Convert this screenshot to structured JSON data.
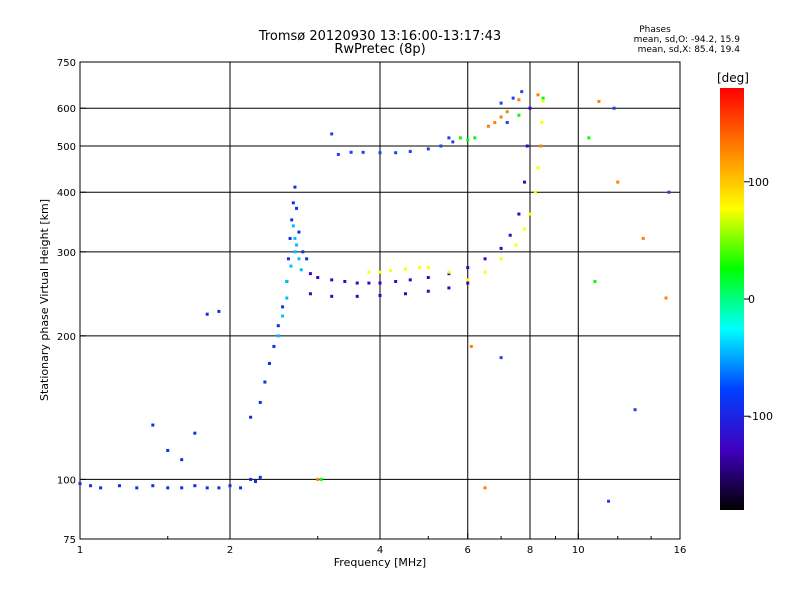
{
  "chart_data": {
    "type": "scatter",
    "title": "Tromsø 20120930 13:16:00-13:17:43",
    "subtitle": "RwPretec (8p)",
    "xlabel": "Frequency [MHz]",
    "ylabel": "Stationary phase Virtual Height [km]",
    "xscale": "log",
    "yscale": "log",
    "xlim": [
      1,
      16
    ],
    "ylim": [
      75,
      750
    ],
    "x_ticks": [
      1,
      2,
      4,
      6,
      8,
      10,
      16
    ],
    "y_ticks": [
      75,
      100,
      200,
      300,
      400,
      500,
      600,
      750
    ],
    "x_gridlines": [
      2,
      4,
      6,
      8,
      10
    ],
    "y_gridlines": [
      100,
      200,
      300,
      400,
      500,
      600
    ],
    "grid": true,
    "info": {
      "heading": "Phases",
      "line1": "mean, sd,O: -94.2, 15.9",
      "line2": "mean, sd,X: 85.4, 19.4"
    },
    "colorbar": {
      "label": "[deg]",
      "range": [
        -180,
        180
      ],
      "ticks": [
        100,
        0,
        -100
      ],
      "colors": [
        "#ff0000",
        "#ff8000",
        "#ffff00",
        "#00ff00",
        "#00ffff",
        "#0040ff",
        "#4000c0",
        "#000000"
      ]
    },
    "series": [
      {
        "color": "#1030e0",
        "phase": -100,
        "points": [
          [
            1.0,
            98
          ],
          [
            1.05,
            97
          ],
          [
            1.1,
            96
          ],
          [
            1.2,
            97
          ],
          [
            1.3,
            96
          ],
          [
            1.4,
            97
          ],
          [
            1.5,
            96
          ],
          [
            1.6,
            96
          ],
          [
            1.7,
            97
          ],
          [
            1.8,
            96
          ],
          [
            1.9,
            96
          ],
          [
            2.0,
            97
          ],
          [
            2.1,
            96
          ],
          [
            2.2,
            100
          ],
          [
            2.25,
            99
          ],
          [
            2.3,
            101
          ],
          [
            1.8,
            222
          ],
          [
            1.9,
            225
          ],
          [
            1.6,
            110
          ],
          [
            1.7,
            125
          ],
          [
            1.5,
            115
          ],
          [
            1.4,
            130
          ],
          [
            2.2,
            135
          ],
          [
            2.3,
            145
          ],
          [
            2.35,
            160
          ],
          [
            2.4,
            175
          ],
          [
            2.45,
            190
          ],
          [
            2.5,
            210
          ],
          [
            2.55,
            230
          ],
          [
            2.6,
            260
          ],
          [
            2.62,
            290
          ],
          [
            2.64,
            320
          ],
          [
            2.66,
            350
          ],
          [
            2.68,
            380
          ],
          [
            2.7,
            410
          ],
          [
            2.72,
            370
          ],
          [
            2.75,
            330
          ],
          [
            2.8,
            300
          ],
          [
            2.85,
            290
          ]
        ]
      },
      {
        "color": "#00c0ff",
        "phase": -40,
        "points": [
          [
            2.6,
            260
          ],
          [
            2.65,
            280
          ],
          [
            2.7,
            300
          ],
          [
            2.72,
            310
          ],
          [
            2.75,
            290
          ],
          [
            2.78,
            275
          ],
          [
            2.6,
            240
          ],
          [
            2.55,
            220
          ],
          [
            2.5,
            200
          ],
          [
            2.7,
            320
          ],
          [
            2.68,
            340
          ]
        ]
      },
      {
        "color": "#4000c0",
        "phase": -130,
        "points": [
          [
            2.9,
            270
          ],
          [
            3.0,
            265
          ],
          [
            3.2,
            262
          ],
          [
            3.4,
            260
          ],
          [
            3.6,
            258
          ],
          [
            3.8,
            258
          ],
          [
            4.0,
            258
          ],
          [
            4.3,
            260
          ],
          [
            4.6,
            262
          ],
          [
            5.0,
            265
          ],
          [
            5.5,
            270
          ],
          [
            6.0,
            278
          ],
          [
            6.5,
            290
          ],
          [
            7.0,
            305
          ],
          [
            7.3,
            325
          ],
          [
            7.6,
            360
          ],
          [
            7.8,
            420
          ],
          [
            7.9,
            500
          ],
          [
            8.0,
            600
          ],
          [
            2.9,
            245
          ],
          [
            3.2,
            242
          ],
          [
            3.6,
            242
          ],
          [
            4.0,
            243
          ],
          [
            4.5,
            245
          ],
          [
            5.0,
            248
          ],
          [
            5.5,
            252
          ],
          [
            6.0,
            258
          ]
        ]
      },
      {
        "color": "#ffff00",
        "phase": 100,
        "points": [
          [
            3.8,
            272
          ],
          [
            4.0,
            272
          ],
          [
            4.2,
            274
          ],
          [
            4.5,
            276
          ],
          [
            4.8,
            278
          ],
          [
            5.0,
            278
          ],
          [
            5.5,
            272
          ],
          [
            6.0,
            262
          ],
          [
            6.5,
            272
          ],
          [
            7.0,
            290
          ],
          [
            7.5,
            310
          ],
          [
            7.8,
            335
          ],
          [
            8.0,
            360
          ],
          [
            8.2,
            400
          ],
          [
            8.3,
            450
          ],
          [
            8.4,
            500
          ],
          [
            8.45,
            560
          ],
          [
            8.5,
            620
          ]
        ]
      },
      {
        "color": "#ff8000",
        "phase": 150,
        "points": [
          [
            6.6,
            550
          ],
          [
            6.8,
            560
          ],
          [
            7.0,
            575
          ],
          [
            7.2,
            590
          ],
          [
            7.6,
            625
          ],
          [
            8.3,
            640
          ],
          [
            8.4,
            500
          ],
          [
            3.0,
            100
          ],
          [
            6.5,
            96
          ],
          [
            6.1,
            190
          ],
          [
            11.0,
            620
          ],
          [
            12.0,
            420
          ],
          [
            13.5,
            320
          ],
          [
            15.0,
            240
          ]
        ]
      },
      {
        "color": "#00ff00",
        "phase": 20,
        "points": [
          [
            5.8,
            520
          ],
          [
            6.0,
            515
          ],
          [
            6.2,
            520
          ],
          [
            8.5,
            630
          ],
          [
            7.6,
            580
          ],
          [
            3.05,
            100
          ],
          [
            10.5,
            520
          ],
          [
            10.8,
            260
          ]
        ]
      },
      {
        "color": "#2040f0",
        "phase": -90,
        "points": [
          [
            3.3,
            480
          ],
          [
            3.5,
            485
          ],
          [
            3.7,
            485
          ],
          [
            4.0,
            484
          ],
          [
            4.3,
            484
          ],
          [
            4.6,
            487
          ],
          [
            5.0,
            493
          ],
          [
            5.3,
            500
          ],
          [
            5.6,
            510
          ],
          [
            7.0,
            615
          ],
          [
            7.4,
            630
          ],
          [
            7.7,
            650
          ],
          [
            7.2,
            560
          ],
          [
            3.2,
            530
          ],
          [
            7.0,
            180
          ],
          [
            11.5,
            90
          ],
          [
            13.0,
            140
          ],
          [
            5.5,
            520
          ],
          [
            15.2,
            400
          ],
          [
            11.8,
            600
          ]
        ]
      }
    ]
  }
}
